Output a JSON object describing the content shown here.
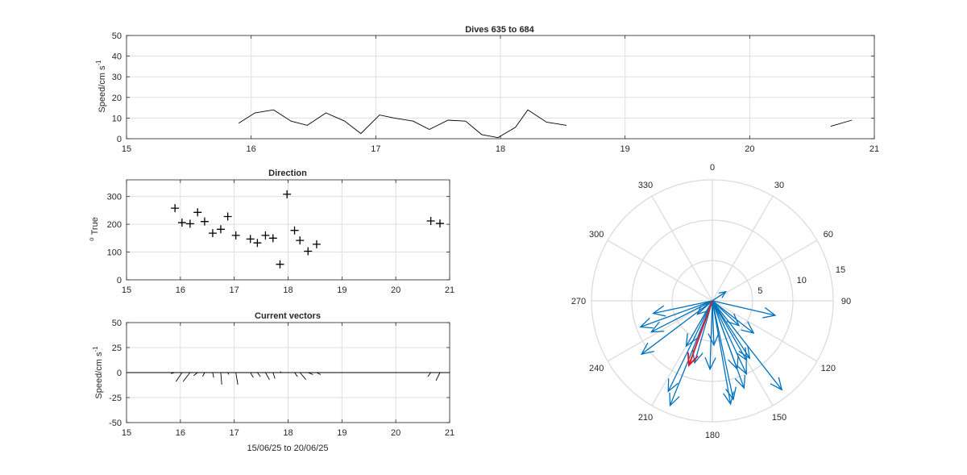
{
  "figure": {
    "title_top": "Dives 635 to 684",
    "title_direction": "Direction",
    "title_vectors": "Current vectors",
    "ylabel_speed": "Speed/cm s",
    "ylabel_speed_sup": "-1",
    "ylabel_direction": "True",
    "ylabel_direction_sup": "o",
    "ylabel_vectors": "Speed/cm s",
    "ylabel_vectors_sup": "-1",
    "xlabel_vectors": "15/06/25 to 20/06/25"
  },
  "colors": {
    "axis": "#262626",
    "grid": "#dfdfdf",
    "line": "#000000",
    "polar_arrow": "#0072bd",
    "polar_mean_arrow": "#d4212d",
    "polar_grid": "#d9d9d9"
  },
  "chart_data": [
    {
      "id": "speed",
      "type": "line",
      "title": "Dives 635 to 684",
      "xlabel": "",
      "ylabel": "Speed/cm s-1",
      "xlim": [
        15,
        21
      ],
      "ylim": [
        0,
        50
      ],
      "xticks": [
        15,
        16,
        17,
        18,
        19,
        20,
        21
      ],
      "yticks": [
        0,
        10,
        20,
        30,
        40,
        50
      ],
      "grid": true,
      "segments": [
        {
          "x": [
            15.9,
            16.03,
            16.18,
            16.32,
            16.45,
            16.6,
            16.75,
            16.88,
            17.03,
            17.15,
            17.3,
            17.43,
            17.58,
            17.72,
            17.85,
            17.98,
            18.12,
            18.22,
            18.37,
            18.53
          ],
          "y": [
            7.5,
            12.5,
            14,
            8.5,
            6.5,
            12.5,
            8.5,
            2.5,
            11.5,
            10,
            8.5,
            4.5,
            9,
            8.5,
            2,
            0.5,
            5.5,
            14,
            8,
            6.5
          ]
        },
        {
          "x": [
            20.65,
            20.82
          ],
          "y": [
            6,
            9
          ]
        }
      ]
    },
    {
      "id": "direction",
      "type": "scatter",
      "title": "Direction",
      "xlabel": "",
      "ylabel": "o True",
      "xlim": [
        15,
        21
      ],
      "ylim": [
        0,
        360
      ],
      "xticks": [
        15,
        16,
        17,
        18,
        19,
        20,
        21
      ],
      "yticks": [
        0,
        100,
        200,
        300
      ],
      "grid": true,
      "marker": "+",
      "x": [
        15.9,
        16.03,
        16.18,
        16.32,
        16.45,
        16.6,
        16.75,
        16.88,
        17.03,
        17.3,
        17.43,
        17.58,
        17.72,
        17.85,
        17.98,
        18.12,
        18.22,
        18.37,
        18.53,
        20.65,
        20.82
      ],
      "y": [
        258,
        206,
        202,
        243,
        210,
        168,
        182,
        228,
        160,
        147,
        133,
        160,
        150,
        56,
        308,
        178,
        142,
        103,
        128,
        212,
        203
      ]
    },
    {
      "id": "vectors",
      "type": "line",
      "title": "Current vectors",
      "xlabel": "15/06/25 to 20/06/25",
      "ylabel": "Speed/cm s-1",
      "xlim": [
        15,
        21
      ],
      "ylim": [
        -50,
        50
      ],
      "xticks": [
        15,
        16,
        17,
        18,
        19,
        20,
        21
      ],
      "yticks": [
        -50,
        -25,
        0,
        25,
        50
      ],
      "grid": true,
      "baseline": 0,
      "sticks": [
        {
          "x": 15.9,
          "u": -4,
          "v": -1
        },
        {
          "x": 16.03,
          "u": -6,
          "v": -9
        },
        {
          "x": 16.18,
          "u": -7,
          "v": -9
        },
        {
          "x": 16.32,
          "u": -4,
          "v": -3
        },
        {
          "x": 16.45,
          "u": -2,
          "v": -4
        },
        {
          "x": 16.6,
          "u": 1,
          "v": -5
        },
        {
          "x": 16.75,
          "u": 1,
          "v": -12
        },
        {
          "x": 16.88,
          "u": 1,
          "v": -2
        },
        {
          "x": 17.03,
          "u": 2,
          "v": -12
        },
        {
          "x": 17.3,
          "u": 3,
          "v": -5
        },
        {
          "x": 17.43,
          "u": 3,
          "v": -4
        },
        {
          "x": 17.58,
          "u": 4,
          "v": -7
        },
        {
          "x": 17.72,
          "u": 2,
          "v": -6
        },
        {
          "x": 17.85,
          "u": 1,
          "v": 1
        },
        {
          "x": 17.98,
          "u": -1,
          "v": 0
        },
        {
          "x": 18.12,
          "u": 3,
          "v": -4
        },
        {
          "x": 18.22,
          "u": 6,
          "v": -7
        },
        {
          "x": 18.37,
          "u": 5,
          "v": -2
        },
        {
          "x": 18.53,
          "u": 4,
          "v": -2
        },
        {
          "x": 20.65,
          "u": -3,
          "v": -4
        },
        {
          "x": 20.82,
          "u": -4,
          "v": -8
        }
      ]
    },
    {
      "id": "polar",
      "type": "scatter",
      "title": "",
      "rlim": [
        0,
        15
      ],
      "rticks": [
        5,
        10,
        15
      ],
      "theta_ticks": [
        0,
        30,
        60,
        90,
        120,
        150,
        180,
        210,
        240,
        270,
        300,
        330
      ],
      "theta_zero": "top",
      "theta_direction": "clockwise",
      "vectors": [
        {
          "dir": 258,
          "speed": 7.5
        },
        {
          "dir": 206,
          "speed": 12.5
        },
        {
          "dir": 202,
          "speed": 14
        },
        {
          "dir": 243,
          "speed": 8.5
        },
        {
          "dir": 210,
          "speed": 6.5
        },
        {
          "dir": 168,
          "speed": 12.5
        },
        {
          "dir": 182,
          "speed": 8.5
        },
        {
          "dir": 228,
          "speed": 2.5
        },
        {
          "dir": 160,
          "speed": 11.5
        },
        {
          "dir": 155,
          "speed": 10
        },
        {
          "dir": 147,
          "speed": 8.5
        },
        {
          "dir": 133,
          "speed": 4.5
        },
        {
          "dir": 160,
          "speed": 9
        },
        {
          "dir": 150,
          "speed": 8.5
        },
        {
          "dir": 56,
          "speed": 2
        },
        {
          "dir": 178,
          "speed": 5.5
        },
        {
          "dir": 142,
          "speed": 14
        },
        {
          "dir": 103,
          "speed": 8
        },
        {
          "dir": 128,
          "speed": 6.5
        },
        {
          "dir": 250,
          "speed": 9.5
        },
        {
          "dir": 233,
          "speed": 11
        },
        {
          "dir": 170,
          "speed": 13
        },
        {
          "dir": 196,
          "speed": 8
        }
      ],
      "mean_vector": {
        "dir": 200,
        "speed": 8.5
      }
    }
  ]
}
